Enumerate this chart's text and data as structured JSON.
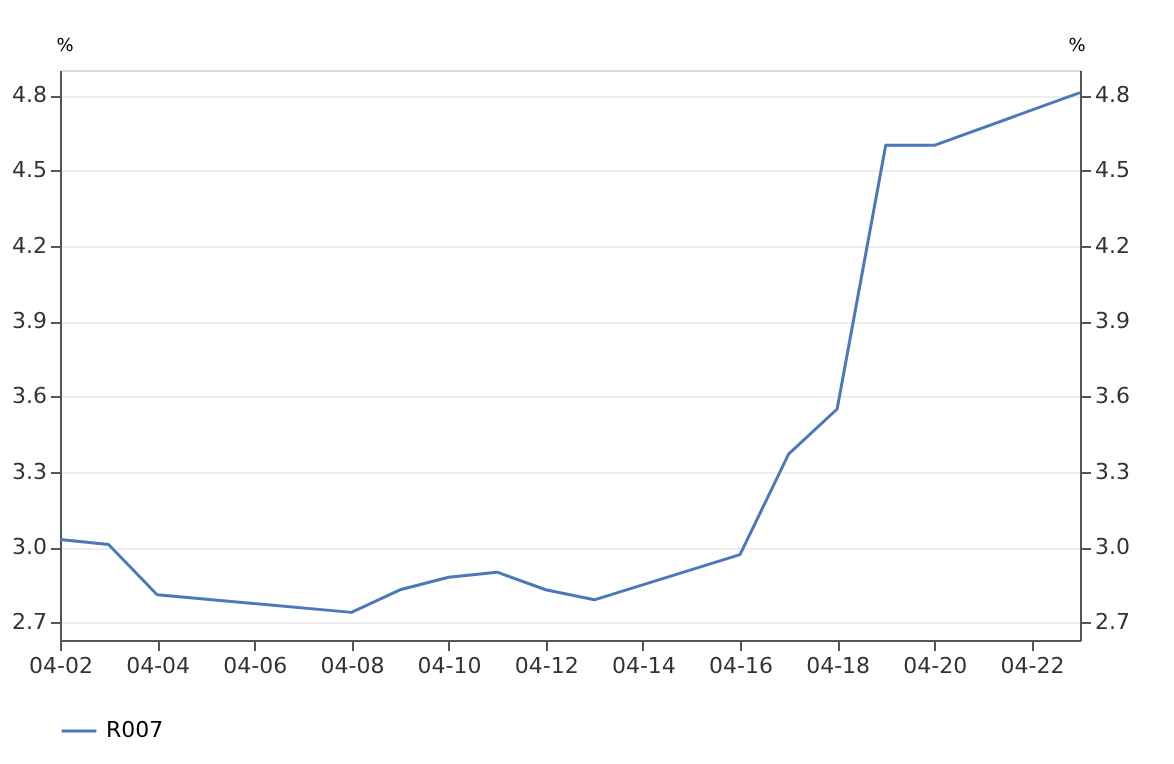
{
  "chart_data": {
    "type": "line",
    "ylabel": "%",
    "y2label": "%",
    "x": [
      "--04-02",
      "--04-03",
      "--04-04",
      "--04-08",
      "--04-09",
      "--04-10",
      "--04-11",
      "--04-12",
      "--04-13",
      "--04-16",
      "--04-17",
      "--04-18",
      "--04-19",
      "--04-20",
      "--04-23"
    ],
    "series": [
      {
        "name": "R007",
        "color": "#4a78b8",
        "values": [
          3.03,
          3.01,
          2.81,
          2.74,
          2.83,
          2.88,
          2.9,
          2.83,
          2.79,
          2.97,
          3.37,
          3.55,
          4.6,
          4.6,
          4.81
        ]
      }
    ],
    "xlim": [
      "--04-02",
      "--04-23"
    ],
    "xticks": [
      {
        "value": "--04-02",
        "label": "04-02"
      },
      {
        "value": "--04-04",
        "label": "04-04"
      },
      {
        "value": "--04-06",
        "label": "04-06"
      },
      {
        "value": "--04-08",
        "label": "04-08"
      },
      {
        "value": "--04-10",
        "label": "04-10"
      },
      {
        "value": "--04-12",
        "label": "04-12"
      },
      {
        "value": "--04-14",
        "label": "04-14"
      },
      {
        "value": "--04-16",
        "label": "04-16"
      },
      {
        "value": "--04-18",
        "label": "04-18"
      },
      {
        "value": "--04-20",
        "label": "04-20"
      },
      {
        "value": "--04-22",
        "label": "04-22"
      }
    ],
    "ylim": [
      2.63,
      4.9
    ],
    "yticks": [
      2.7,
      {
        "value": 3,
        "label": "3.0"
      },
      3.3,
      3.6,
      3.9,
      4.2,
      4.5,
      4.8
    ],
    "y2lim": [
      2.63,
      4.9
    ],
    "y2ticks": [
      2.7,
      {
        "value": 3,
        "label": "3.0"
      },
      3.3,
      3.6,
      3.9,
      4.2,
      4.5,
      4.8
    ],
    "grid": "y",
    "legend": "bottom",
    "marker": "none",
    "line_style": "solid"
  }
}
